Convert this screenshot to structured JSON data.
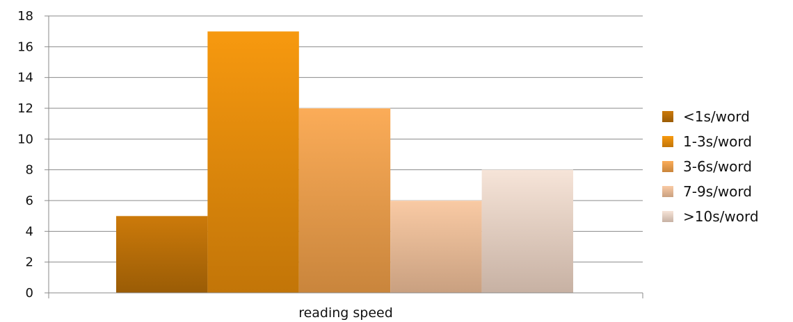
{
  "chart_data": {
    "type": "bar",
    "categories": [
      "reading speed"
    ],
    "series": [
      {
        "name": "<1s/word",
        "values": [
          5
        ],
        "color_top": "#cc7a0a",
        "color_bottom": "#9a5c06"
      },
      {
        "name": "1-3s/word",
        "values": [
          17
        ],
        "color_top": "#f7990f",
        "color_bottom": "#c27508"
      },
      {
        "name": "3-6s/word",
        "values": [
          12
        ],
        "color_top": "#fbac58",
        "color_bottom": "#c9853c"
      },
      {
        "name": "7-9s/word",
        "values": [
          6
        ],
        "color_top": "#f9caa4",
        "color_bottom": "#c9a080"
      },
      {
        "name": ">10s/word",
        "values": [
          8
        ],
        "color_top": "#f6e4d8",
        "color_bottom": "#c7b1a3"
      }
    ],
    "ylim": [
      0,
      18
    ],
    "yticks": [
      0,
      2,
      4,
      6,
      8,
      10,
      12,
      14,
      16,
      18
    ],
    "grid": true,
    "legend": "right",
    "title": "",
    "xlabel": "",
    "ylabel": ""
  }
}
